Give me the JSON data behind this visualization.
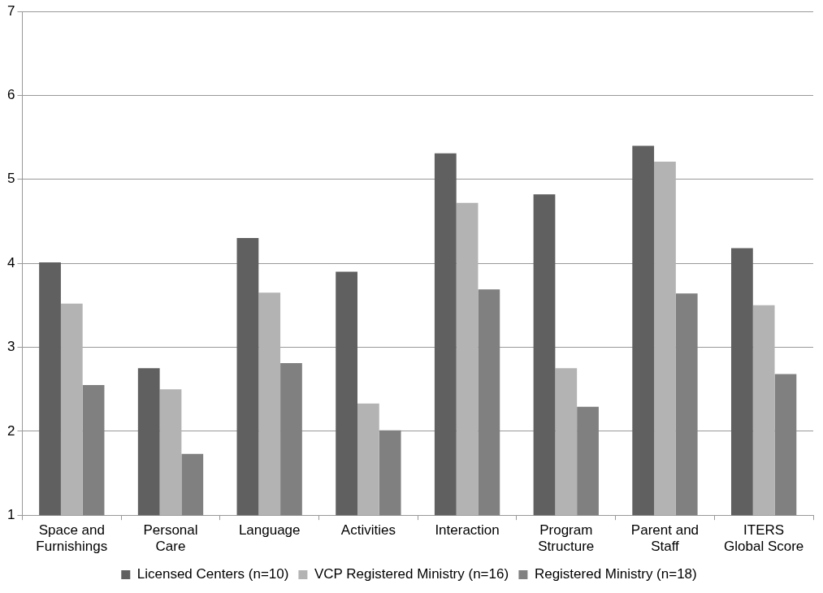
{
  "chart_data": {
    "type": "bar",
    "categories": [
      "Space and Furnishings",
      "Personal Care",
      "Language",
      "Activities",
      "Interaction",
      "Program Structure",
      "Parent and Staff",
      "ITERS Global Score"
    ],
    "series": [
      {
        "name": "Licensed Centers (n=10)",
        "color": "#606060",
        "values": [
          4.01,
          2.75,
          4.3,
          3.9,
          5.31,
          4.82,
          5.4,
          4.18
        ]
      },
      {
        "name": "VCP Registered Ministry (n=16)",
        "color": "#b3b3b3",
        "values": [
          3.52,
          2.5,
          3.65,
          2.33,
          4.72,
          2.75,
          5.21,
          3.5
        ]
      },
      {
        "name": "Registered Ministry (n=18)",
        "color": "#808080",
        "values": [
          2.55,
          1.73,
          2.81,
          2.01,
          3.69,
          2.29,
          3.64,
          2.68
        ]
      }
    ],
    "ylim": [
      1,
      7
    ],
    "yticks": [
      1,
      2,
      3,
      4,
      5,
      6,
      7
    ],
    "grid": "y",
    "legend": "bottom"
  }
}
